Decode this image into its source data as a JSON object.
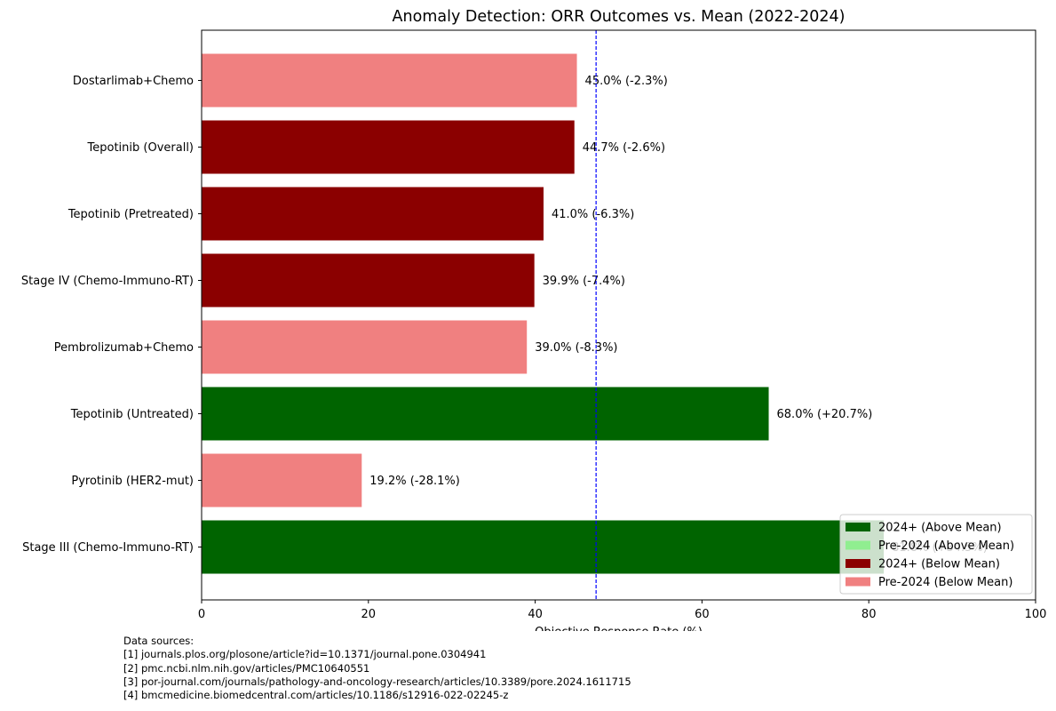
{
  "chart_data": {
    "type": "bar",
    "orientation": "horizontal",
    "title": "Anomaly Detection: ORR Outcomes vs. Mean (2022-2024)",
    "xlabel": "Objective Response Rate (%)",
    "ylabel": "",
    "xlim": [
      0,
      100
    ],
    "xticks": [
      0,
      20,
      40,
      60,
      80,
      100
    ],
    "mean": 47.3,
    "grid": false,
    "legend_position": "lower-right",
    "colors": {
      "above_2024": "#006400",
      "above_pre2024": "#90ee90",
      "below_2024": "#8b0000",
      "below_pre2024": "#f08080",
      "mean_line": "#0000ff"
    },
    "categories": [
      "Stage III (Chemo-Immuno-RT)",
      "Pyrotinib (HER2-mut)",
      "Tepotinib (Untreated)",
      "Pembrolizumab+Chemo",
      "Stage IV (Chemo-Immuno-RT)",
      "Tepotinib (Pretreated)",
      "Tepotinib (Overall)",
      "Dostarlimab+Chemo"
    ],
    "values": [
      81.8,
      19.2,
      68.0,
      39.0,
      39.9,
      41.0,
      44.7,
      45.0
    ],
    "groups": [
      "above_2024",
      "below_pre2024",
      "above_2024",
      "below_pre2024",
      "below_2024",
      "below_2024",
      "below_2024",
      "below_pre2024"
    ],
    "data_labels": [
      "81.8% (+34.5%)",
      "19.2% (-28.1%)",
      "68.0% (+20.7%)",
      "39.0% (-8.3%)",
      "39.9% (-7.4%)",
      "41.0% (-6.3%)",
      "44.7% (-2.6%)",
      "45.0% (-2.3%)"
    ],
    "legend": [
      {
        "label": "2024+ (Above Mean)",
        "group": "above_2024"
      },
      {
        "label": "Pre-2024 (Above Mean)",
        "group": "above_pre2024"
      },
      {
        "label": "2024+ (Below Mean)",
        "group": "below_2024"
      },
      {
        "label": "Pre-2024 (Below Mean)",
        "group": "below_pre2024"
      }
    ]
  },
  "footer": {
    "heading": "Data sources:",
    "sources": [
      "[1] journals.plos.org/plosone/article?id=10.1371/journal.pone.0304941",
      "[2] pmc.ncbi.nlm.nih.gov/articles/PMC10640551",
      "[3] por-journal.com/journals/pathology-and-oncology-research/articles/10.3389/pore.2024.1611715",
      "[4] bmcmedicine.biomedcentral.com/articles/10.1186/s12916-022-02245-z"
    ]
  }
}
